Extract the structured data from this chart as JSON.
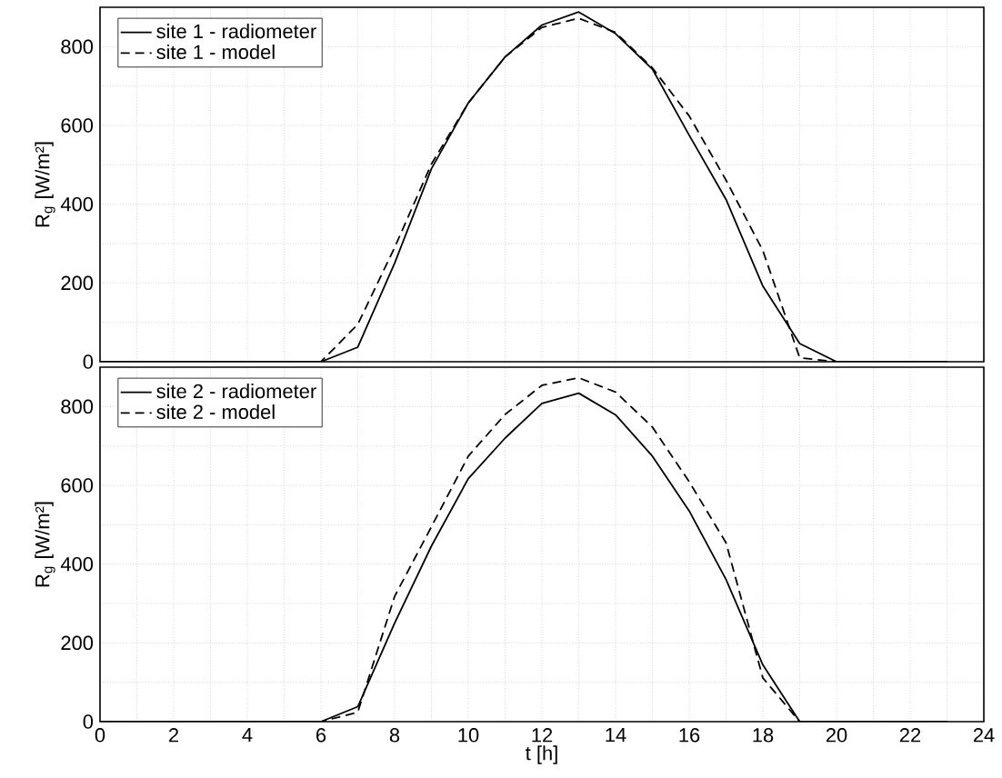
{
  "chart_data": [
    {
      "type": "line",
      "x": [
        0,
        1,
        2,
        3,
        4,
        5,
        6,
        7,
        8,
        9,
        10,
        11,
        12,
        13,
        14,
        15,
        16,
        17,
        18,
        19,
        20,
        21,
        22,
        23
      ],
      "ylabel": "R$_{g}$ [W/m²]",
      "xlim": [
        0,
        24
      ],
      "ylim": [
        0,
        900
      ],
      "xticks": [
        0,
        2,
        4,
        6,
        8,
        10,
        12,
        14,
        16,
        18,
        20,
        22,
        24
      ],
      "yticks": [
        0,
        200,
        400,
        600,
        800
      ],
      "tick_labels": "y",
      "grid": true,
      "legend": "top left",
      "series": [
        {
          "name": "site 1 - radiometer",
          "color": "#000000",
          "line_style": "solid",
          "values": [
            0,
            0,
            0,
            0,
            0,
            0,
            0,
            37,
            250,
            490,
            657,
            774,
            855,
            888,
            833,
            743,
            575,
            412,
            192,
            46,
            0,
            0,
            0,
            0
          ]
        },
        {
          "name": "site 1 - model",
          "color": "#000000",
          "line_style": "dashed",
          "values": [
            0,
            0,
            0,
            0,
            0,
            0,
            0,
            95,
            290,
            502,
            657,
            774,
            849,
            872,
            836,
            746,
            624,
            461,
            282,
            10,
            0,
            0,
            0,
            0
          ]
        }
      ]
    },
    {
      "type": "line",
      "x": [
        0,
        1,
        2,
        3,
        4,
        5,
        6,
        7,
        8,
        9,
        10,
        11,
        12,
        13,
        14,
        15,
        16,
        17,
        18,
        19,
        20,
        21,
        22,
        23
      ],
      "xlabel": "t [h]",
      "ylabel": "R$_{g}$ [W/m²]",
      "xlim": [
        0,
        24
      ],
      "ylim": [
        0,
        900
      ],
      "xticks": [
        0,
        2,
        4,
        6,
        8,
        10,
        12,
        14,
        16,
        18,
        20,
        22,
        24
      ],
      "yticks": [
        0,
        200,
        400,
        600,
        800
      ],
      "grid": true,
      "legend": "top left",
      "series": [
        {
          "name": "site 2 - radiometer",
          "color": "#000000",
          "line_style": "solid",
          "values": [
            0,
            0,
            0,
            0,
            0,
            0,
            0,
            38,
            250,
            446,
            617,
            720,
            808,
            834,
            779,
            674,
            535,
            361,
            144,
            0,
            0,
            0,
            0,
            0
          ]
        },
        {
          "name": "site 2 - model",
          "color": "#000000",
          "line_style": "dashed",
          "values": [
            0,
            0,
            0,
            0,
            0,
            0,
            0,
            24,
            318,
            495,
            674,
            780,
            854,
            873,
            837,
            748,
            609,
            454,
            111,
            0,
            0,
            0,
            0,
            0
          ]
        }
      ]
    }
  ]
}
